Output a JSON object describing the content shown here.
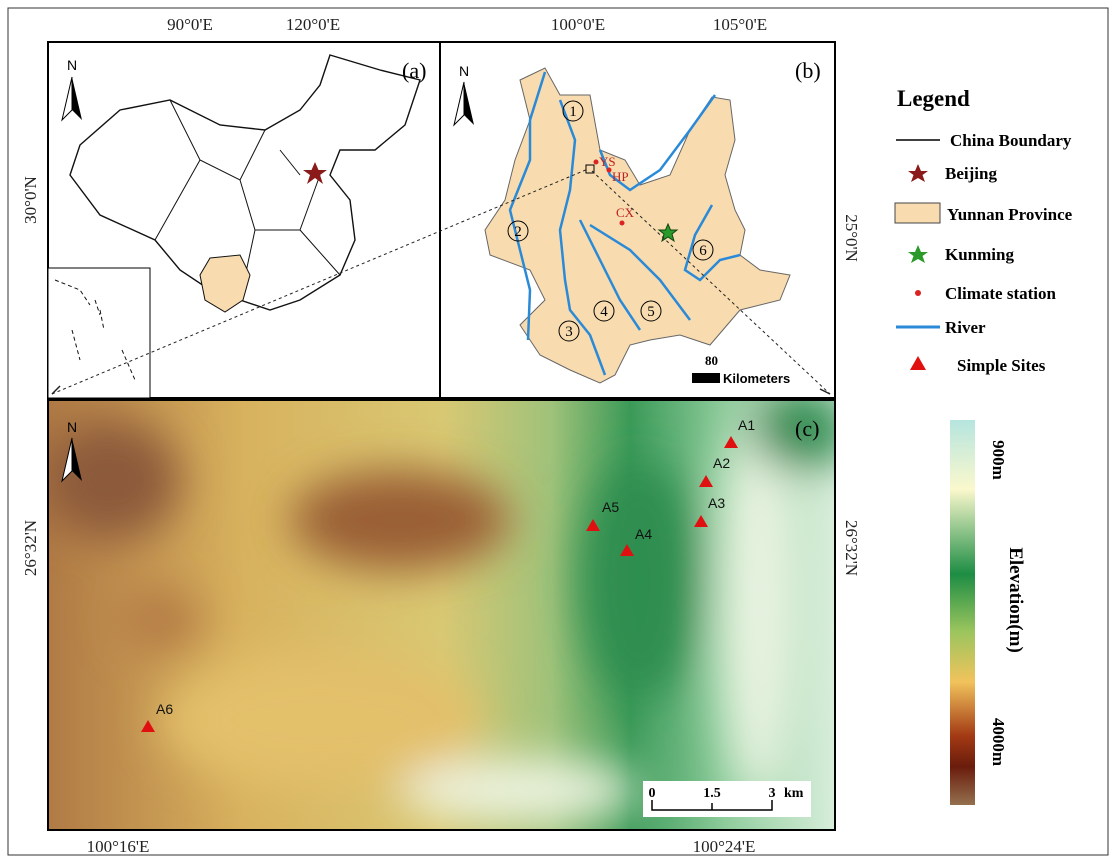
{
  "axes": {
    "top": [
      "90°0'E",
      "120°0'E",
      "100°0'E",
      "105°0'E"
    ],
    "left": [
      "30°0'N",
      "26°32'N"
    ],
    "right": [
      "25°0'N",
      "26°32'N"
    ],
    "bottom": [
      "100°16'E",
      "100°24'E"
    ]
  },
  "panel_a": {
    "label": "(a)",
    "north": "N"
  },
  "panel_b": {
    "label": "(b)",
    "north": "N",
    "regions": [
      "1",
      "2",
      "3",
      "4",
      "5",
      "6"
    ],
    "stations": [
      "YS",
      "HP",
      "CX"
    ],
    "scale": {
      "value": "80",
      "unit": "Kilometers"
    }
  },
  "panel_c": {
    "label": "(c)",
    "north": "N",
    "sites": [
      "A1",
      "A2",
      "A3",
      "A4",
      "A5",
      "A6"
    ],
    "scale": [
      "0",
      "1.5",
      "3",
      "km"
    ]
  },
  "legend": {
    "title": "Legend",
    "items": [
      "China Boundary",
      "Beijing",
      "Yunnan Province",
      "Kunming",
      "Climate station",
      "River",
      "Simple Sites"
    ]
  },
  "colorbar": {
    "top": "900m",
    "bottom": "4000m",
    "title": "Elevation(m)"
  }
}
